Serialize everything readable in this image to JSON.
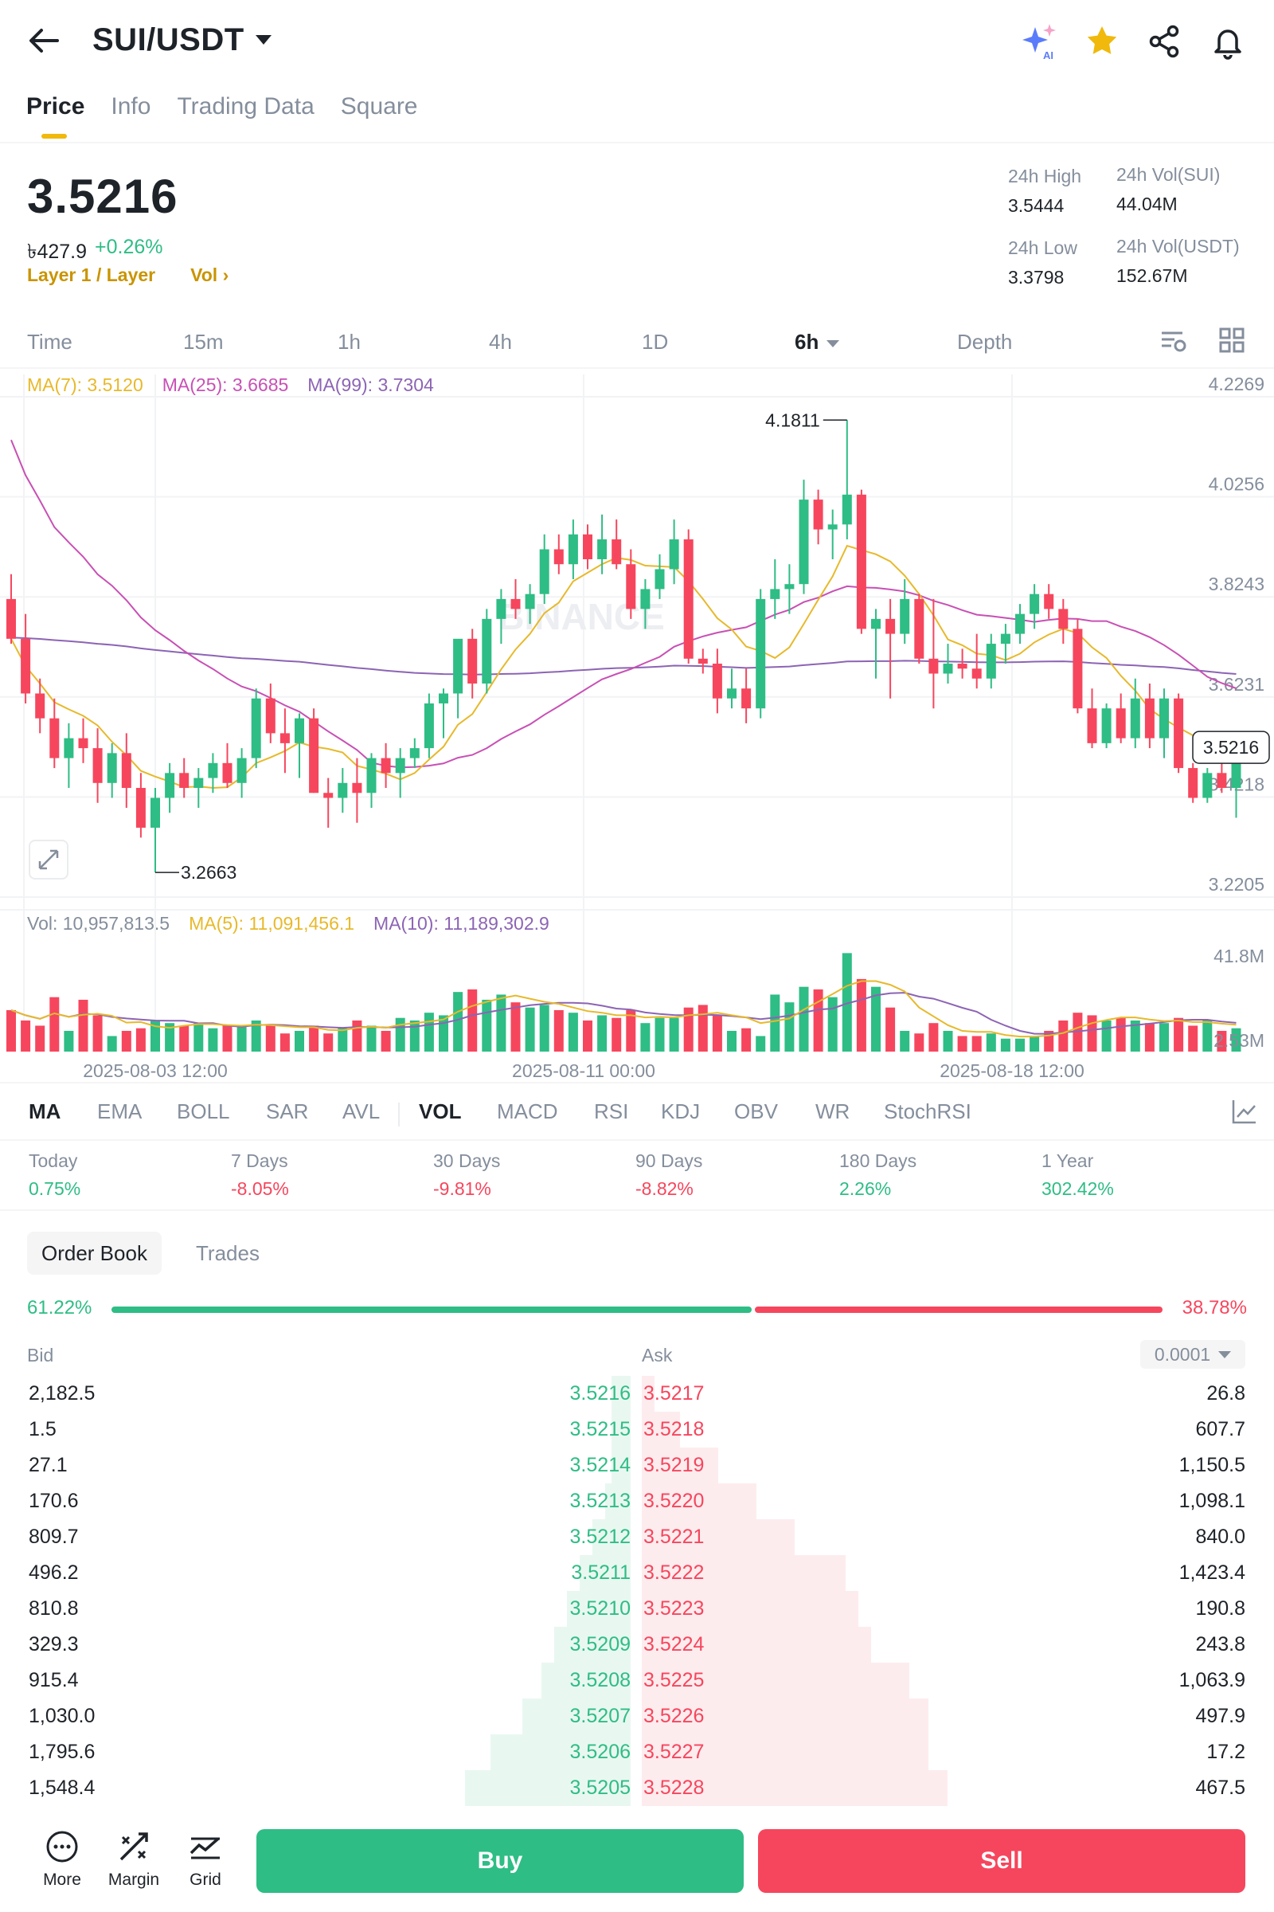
{
  "header": {
    "pair": "SUI/USDT",
    "ai_label": "AI"
  },
  "tabs": [
    {
      "label": "Price",
      "active": true
    },
    {
      "label": "Info"
    },
    {
      "label": "Trading Data"
    },
    {
      "label": "Square"
    }
  ],
  "ticker": {
    "last_price": "3.5216",
    "fiat_price": "৳427.9",
    "change": "+0.26%",
    "category": "Layer 1 / Layer",
    "vol_link": "Vol ›",
    "high_label": "24h High",
    "high": "3.5444",
    "low_label": "24h Low",
    "low": "3.3798",
    "vol_base_label": "24h Vol(SUI)",
    "vol_base": "44.04M",
    "vol_quote_label": "24h Vol(USDT)",
    "vol_quote": "152.67M"
  },
  "intervals": [
    "Time",
    "15m",
    "1h",
    "4h",
    "1D",
    "6h",
    "Depth"
  ],
  "active_interval": "6h",
  "chart_legend": {
    "ma7": "MA(7): 3.5120",
    "ma25": "MA(25): 3.6685",
    "ma99": "MA(99): 3.7304",
    "vol": "Vol: 10,957,813.5",
    "vol_ma5": "MA(5): 11,091,456.1",
    "vol_ma10": "MA(10): 11,189,302.9"
  },
  "chart_data": {
    "type": "candlestick",
    "price_ticks": [
      "4.2269",
      "4.0256",
      "3.8243",
      "3.6231",
      "3.4218",
      "3.2205"
    ],
    "ylim": [
      3.2205,
      4.2269
    ],
    "volume_ticks": [
      "41.8M",
      "2.53M"
    ],
    "x_ticks": [
      "2025-08-03 12:00",
      "2025-08-11 00:00",
      "2025-08-18 12:00"
    ],
    "high_marker": "4.1811",
    "low_marker": "3.2663",
    "current_price_label": "3.5216",
    "watermark": "BINANCE",
    "colors": {
      "up": "#2ebd85",
      "down": "#f6465d",
      "ma7": "#e7b92b",
      "ma25": "#c850b4",
      "ma99": "#8c64b4"
    },
    "candles": [
      [
        3.82,
        3.87,
        3.73,
        3.74
      ],
      [
        3.74,
        3.79,
        3.61,
        3.63
      ],
      [
        3.63,
        3.66,
        3.55,
        3.58
      ],
      [
        3.58,
        3.62,
        3.48,
        3.5
      ],
      [
        3.5,
        3.57,
        3.44,
        3.54
      ],
      [
        3.54,
        3.58,
        3.49,
        3.52
      ],
      [
        3.52,
        3.56,
        3.41,
        3.45
      ],
      [
        3.45,
        3.53,
        3.42,
        3.51
      ],
      [
        3.51,
        3.55,
        3.4,
        3.44
      ],
      [
        3.44,
        3.47,
        3.34,
        3.36
      ],
      [
        3.36,
        3.44,
        3.27,
        3.42
      ],
      [
        3.42,
        3.49,
        3.39,
        3.47
      ],
      [
        3.47,
        3.5,
        3.42,
        3.44
      ],
      [
        3.44,
        3.48,
        3.4,
        3.46
      ],
      [
        3.46,
        3.51,
        3.43,
        3.49
      ],
      [
        3.49,
        3.53,
        3.44,
        3.45
      ],
      [
        3.45,
        3.52,
        3.42,
        3.5
      ],
      [
        3.5,
        3.64,
        3.48,
        3.62
      ],
      [
        3.62,
        3.65,
        3.53,
        3.55
      ],
      [
        3.55,
        3.6,
        3.47,
        3.53
      ],
      [
        3.53,
        3.59,
        3.46,
        3.58
      ],
      [
        3.58,
        3.6,
        3.43,
        3.43
      ],
      [
        3.43,
        3.46,
        3.36,
        3.42
      ],
      [
        3.42,
        3.48,
        3.39,
        3.45
      ],
      [
        3.45,
        3.5,
        3.37,
        3.43
      ],
      [
        3.43,
        3.51,
        3.4,
        3.5
      ],
      [
        3.5,
        3.53,
        3.44,
        3.47
      ],
      [
        3.47,
        3.52,
        3.42,
        3.5
      ],
      [
        3.5,
        3.54,
        3.48,
        3.52
      ],
      [
        3.52,
        3.63,
        3.5,
        3.61
      ],
      [
        3.61,
        3.64,
        3.54,
        3.63
      ],
      [
        3.63,
        3.73,
        3.58,
        3.74
      ],
      [
        3.74,
        3.76,
        3.62,
        3.65
      ],
      [
        3.65,
        3.8,
        3.63,
        3.78
      ],
      [
        3.78,
        3.84,
        3.73,
        3.82
      ],
      [
        3.82,
        3.86,
        3.78,
        3.8
      ],
      [
        3.8,
        3.85,
        3.77,
        3.83
      ],
      [
        3.83,
        3.95,
        3.81,
        3.92
      ],
      [
        3.92,
        3.95,
        3.87,
        3.89
      ],
      [
        3.89,
        3.98,
        3.86,
        3.95
      ],
      [
        3.95,
        3.97,
        3.88,
        3.9
      ],
      [
        3.9,
        3.99,
        3.87,
        3.94
      ],
      [
        3.94,
        3.98,
        3.88,
        3.89
      ],
      [
        3.89,
        3.92,
        3.78,
        3.8
      ],
      [
        3.8,
        3.86,
        3.76,
        3.84
      ],
      [
        3.84,
        3.91,
        3.82,
        3.88
      ],
      [
        3.88,
        3.98,
        3.85,
        3.94
      ],
      [
        3.94,
        3.96,
        3.69,
        3.7
      ],
      [
        3.7,
        3.72,
        3.67,
        3.69
      ],
      [
        3.69,
        3.72,
        3.59,
        3.62
      ],
      [
        3.62,
        3.68,
        3.6,
        3.64
      ],
      [
        3.64,
        3.68,
        3.57,
        3.6
      ],
      [
        3.6,
        3.84,
        3.58,
        3.82
      ],
      [
        3.82,
        3.9,
        3.78,
        3.84
      ],
      [
        3.84,
        3.89,
        3.79,
        3.85
      ],
      [
        3.85,
        4.06,
        3.83,
        4.02
      ],
      [
        4.02,
        4.04,
        3.93,
        3.96
      ],
      [
        3.96,
        4.0,
        3.9,
        3.97
      ],
      [
        3.97,
        4.18,
        3.94,
        4.03
      ],
      [
        4.03,
        4.04,
        3.75,
        3.76
      ],
      [
        3.76,
        3.8,
        3.66,
        3.78
      ],
      [
        3.78,
        3.82,
        3.62,
        3.75
      ],
      [
        3.75,
        3.86,
        3.73,
        3.82
      ],
      [
        3.82,
        3.83,
        3.69,
        3.7
      ],
      [
        3.7,
        3.82,
        3.6,
        3.67
      ],
      [
        3.67,
        3.73,
        3.65,
        3.69
      ],
      [
        3.69,
        3.72,
        3.66,
        3.68
      ],
      [
        3.68,
        3.75,
        3.64,
        3.66
      ],
      [
        3.66,
        3.75,
        3.64,
        3.73
      ],
      [
        3.73,
        3.77,
        3.69,
        3.75
      ],
      [
        3.75,
        3.81,
        3.73,
        3.79
      ],
      [
        3.79,
        3.85,
        3.76,
        3.83
      ],
      [
        3.83,
        3.85,
        3.78,
        3.8
      ],
      [
        3.8,
        3.82,
        3.73,
        3.76
      ],
      [
        3.76,
        3.78,
        3.59,
        3.6
      ],
      [
        3.6,
        3.64,
        3.52,
        3.53
      ],
      [
        3.53,
        3.61,
        3.52,
        3.6
      ],
      [
        3.6,
        3.63,
        3.53,
        3.54
      ],
      [
        3.54,
        3.66,
        3.52,
        3.62
      ],
      [
        3.62,
        3.65,
        3.52,
        3.54
      ],
      [
        3.54,
        3.64,
        3.5,
        3.62
      ],
      [
        3.62,
        3.63,
        3.47,
        3.48
      ],
      [
        3.48,
        3.49,
        3.41,
        3.42
      ],
      [
        3.42,
        3.48,
        3.41,
        3.47
      ],
      [
        3.47,
        3.49,
        3.43,
        3.44
      ],
      [
        3.44,
        3.53,
        3.38,
        3.52
      ]
    ],
    "volumes": [
      16,
      12,
      10,
      21,
      8,
      20,
      14,
      6,
      8,
      9,
      12,
      11,
      10,
      11,
      9,
      10,
      10,
      12,
      10,
      7,
      8,
      10,
      7,
      9,
      12,
      10,
      8,
      13,
      12,
      15,
      14,
      23,
      24,
      20,
      22,
      19,
      17,
      18,
      16,
      15,
      12,
      14,
      13,
      16,
      11,
      13,
      13,
      17,
      18,
      14,
      8,
      9,
      6,
      22,
      19,
      25,
      24,
      21,
      38,
      28,
      25,
      17,
      8,
      7,
      11,
      8,
      6,
      6,
      7,
      5,
      5,
      6,
      8,
      12,
      15,
      14,
      12,
      13,
      12,
      11,
      11,
      13,
      10,
      12,
      8,
      9
    ]
  },
  "indicators": [
    "MA",
    "EMA",
    "BOLL",
    "SAR",
    "AVL",
    "VOL",
    "MACD",
    "RSI",
    "KDJ",
    "OBV",
    "WR",
    "StochRSI"
  ],
  "performance": [
    {
      "label": "Today",
      "value": "0.75%",
      "dir": "up"
    },
    {
      "label": "7 Days",
      "value": "-8.05%",
      "dir": "down"
    },
    {
      "label": "30 Days",
      "value": "-9.81%",
      "dir": "down"
    },
    {
      "label": "90 Days",
      "value": "-8.82%",
      "dir": "down"
    },
    {
      "label": "180 Days",
      "value": "2.26%",
      "dir": "up"
    },
    {
      "label": "1 Year",
      "value": "302.42%",
      "dir": "up"
    }
  ],
  "orderbook": {
    "tab_active": "Order Book",
    "tab_other": "Trades",
    "bid_ratio": "61.22%",
    "ask_ratio": "38.78%",
    "bid_fraction": 0.6122,
    "bid_label": "Bid",
    "ask_label": "Ask",
    "precision": "0.0001",
    "rows": [
      {
        "bid_qty": "2,182.5",
        "bid_price": "3.5216",
        "ask_price": "3.5217",
        "ask_qty": "26.8",
        "bid_depth": 0.03,
        "ask_depth": 0.02
      },
      {
        "bid_qty": "1.5",
        "bid_price": "3.5215",
        "ask_price": "3.5218",
        "ask_qty": "607.7",
        "bid_depth": 0.03,
        "ask_depth": 0.06
      },
      {
        "bid_qty": "27.1",
        "bid_price": "3.5214",
        "ask_price": "3.5219",
        "ask_qty": "1,150.5",
        "bid_depth": 0.03,
        "ask_depth": 0.12
      },
      {
        "bid_qty": "170.6",
        "bid_price": "3.5213",
        "ask_price": "3.5220",
        "ask_qty": "1,098.1",
        "bid_depth": 0.04,
        "ask_depth": 0.18
      },
      {
        "bid_qty": "809.7",
        "bid_price": "3.5212",
        "ask_price": "3.5221",
        "ask_qty": "840.0",
        "bid_depth": 0.06,
        "ask_depth": 0.24
      },
      {
        "bid_qty": "496.2",
        "bid_price": "3.5211",
        "ask_price": "3.5222",
        "ask_qty": "1,423.4",
        "bid_depth": 0.08,
        "ask_depth": 0.32
      },
      {
        "bid_qty": "810.8",
        "bid_price": "3.5210",
        "ask_price": "3.5223",
        "ask_qty": "190.8",
        "bid_depth": 0.1,
        "ask_depth": 0.34
      },
      {
        "bid_qty": "329.3",
        "bid_price": "3.5209",
        "ask_price": "3.5224",
        "ask_qty": "243.8",
        "bid_depth": 0.12,
        "ask_depth": 0.36
      },
      {
        "bid_qty": "915.4",
        "bid_price": "3.5208",
        "ask_price": "3.5225",
        "ask_qty": "1,063.9",
        "bid_depth": 0.14,
        "ask_depth": 0.42
      },
      {
        "bid_qty": "1,030.0",
        "bid_price": "3.5207",
        "ask_price": "3.5226",
        "ask_qty": "497.9",
        "bid_depth": 0.17,
        "ask_depth": 0.45
      },
      {
        "bid_qty": "1,795.6",
        "bid_price": "3.5206",
        "ask_price": "3.5227",
        "ask_qty": "17.2",
        "bid_depth": 0.22,
        "ask_depth": 0.45
      },
      {
        "bid_qty": "1,548.4",
        "bid_price": "3.5205",
        "ask_price": "3.5228",
        "ask_qty": "467.5",
        "bid_depth": 0.26,
        "ask_depth": 0.48
      }
    ]
  },
  "bottom": {
    "more": "More",
    "margin": "Margin",
    "grid": "Grid",
    "buy": "Buy",
    "sell": "Sell"
  }
}
